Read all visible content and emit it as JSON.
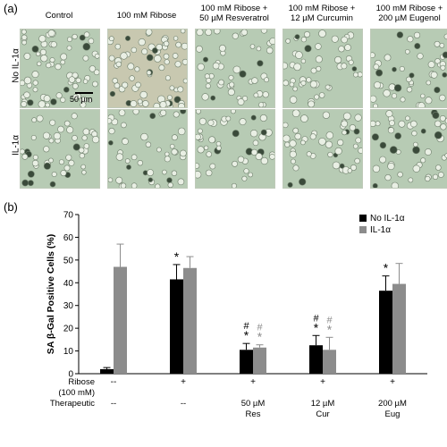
{
  "panel_a": {
    "label": "(a)",
    "column_headers": [
      [
        "Control"
      ],
      [
        "100 mM Ribose"
      ],
      [
        "100 mM Ribose +",
        "50 µM Resveratrol"
      ],
      [
        "100 mM Ribose +",
        "12 µM Curcumin"
      ],
      [
        "100 mM Ribose +",
        "200 µM Eugenol"
      ]
    ],
    "row_headers": [
      "No IL-1α",
      "IL-1α"
    ],
    "scale_bar_label": "50 µm",
    "image_tint": "#b7cbb4",
    "ribose_tint": "#c8c8b0"
  },
  "panel_b": {
    "label": "(b)",
    "row_labels": [
      "Ribose",
      "(100 mM)",
      "Therapeutic"
    ],
    "ribose_values": [
      "--",
      "+",
      "+",
      "+",
      "+"
    ],
    "therapeutic_values": [
      [
        "--"
      ],
      [
        "--"
      ],
      [
        "50 µM",
        "Res"
      ],
      [
        "12 µM",
        "Cur"
      ],
      [
        "200 µM",
        "Eug"
      ]
    ]
  },
  "chart_data": {
    "type": "bar",
    "ylabel": "SA β-Gal Positive Cells (%)",
    "ylim": [
      0,
      70
    ],
    "yticks": [
      0,
      10,
      20,
      30,
      40,
      50,
      60,
      70
    ],
    "grid": false,
    "legend_position": "top-right",
    "series": [
      {
        "name": "No IL-1α",
        "color": "#000000",
        "values": [
          2,
          41.5,
          10.5,
          12.5,
          36.5
        ],
        "errors": [
          0.7,
          6.5,
          2.8,
          4.3,
          6.5
        ]
      },
      {
        "name": "IL-1α",
        "color": "#8c8c8c",
        "values": [
          47,
          46.5,
          11.5,
          10.5,
          39.5
        ],
        "errors": [
          10,
          5,
          1.2,
          5.5,
          9
        ]
      }
    ],
    "annotations": [
      {
        "group": 1,
        "series": 0,
        "text": "*",
        "color": "#000000"
      },
      {
        "group": 2,
        "series": 0,
        "text": "#",
        "color": "#000000"
      },
      {
        "group": 2,
        "series": 0,
        "text": "*",
        "color": "#000000"
      },
      {
        "group": 2,
        "series": 1,
        "text": "#",
        "color": "#8c8c8c"
      },
      {
        "group": 2,
        "series": 1,
        "text": "*",
        "color": "#8c8c8c"
      },
      {
        "group": 3,
        "series": 0,
        "text": "#",
        "color": "#000000"
      },
      {
        "group": 3,
        "series": 0,
        "text": "*",
        "color": "#000000"
      },
      {
        "group": 3,
        "series": 1,
        "text": "#",
        "color": "#8c8c8c"
      },
      {
        "group": 3,
        "series": 1,
        "text": "*",
        "color": "#8c8c8c"
      },
      {
        "group": 4,
        "series": 0,
        "text": "*",
        "color": "#000000"
      }
    ]
  }
}
